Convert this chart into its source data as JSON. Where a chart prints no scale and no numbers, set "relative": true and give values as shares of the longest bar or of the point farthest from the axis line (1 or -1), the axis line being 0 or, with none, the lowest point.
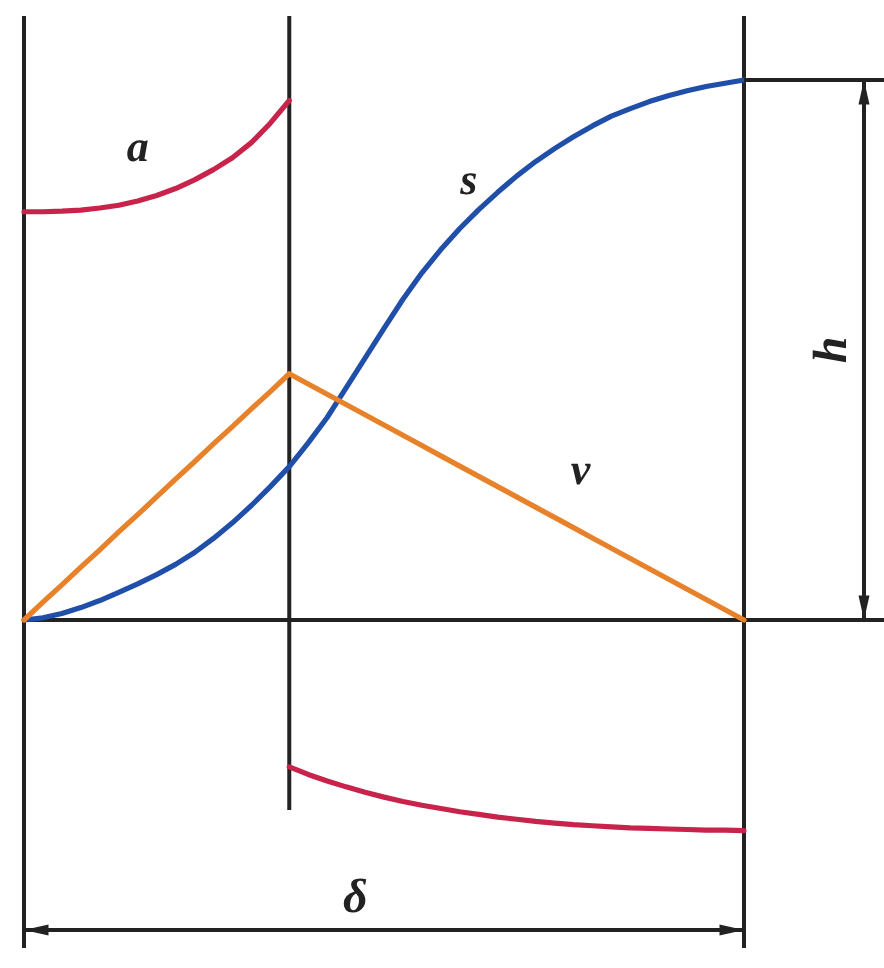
{
  "chart_data": {
    "type": "line",
    "relative": true,
    "categories": [
      null,
      null,
      null,
      null,
      null,
      null,
      null,
      null,
      null,
      null,
      null,
      null,
      null,
      null,
      null,
      null,
      null,
      null,
      null,
      null,
      null,
      null,
      null,
      null,
      null,
      null,
      null,
      null,
      null,
      null,
      null,
      null,
      null,
      null,
      null,
      null,
      null,
      null,
      null
    ],
    "series": [
      {
        "name": "a",
        "color": "#c8234b",
        "values": [
          0.756,
          0.756,
          0.757,
          0.759,
          0.763,
          0.768,
          0.776,
          0.786,
          0.799,
          0.815,
          0.834,
          0.856,
          0.884,
          0.92,
          0.962,
          null,
          null,
          null,
          null,
          null,
          null,
          null,
          null,
          null,
          null,
          null,
          null,
          null,
          null,
          null,
          null,
          null,
          null,
          null,
          null,
          null,
          null,
          null,
          null
        ]
      },
      {
        "color": "#c8234b",
        "values": [
          null,
          null,
          null,
          null,
          null,
          null,
          null,
          null,
          null,
          null,
          null,
          null,
          null,
          null,
          -0.272,
          -0.286,
          -0.298,
          -0.309,
          -0.319,
          -0.328,
          -0.336,
          -0.343,
          -0.349,
          -0.355,
          -0.36,
          -0.365,
          -0.369,
          -0.373,
          -0.376,
          -0.379,
          -0.381,
          -0.383,
          -0.385,
          -0.386,
          -0.387,
          -0.388,
          -0.389,
          -0.389,
          -0.39
        ]
      },
      {
        "name": "s",
        "color": "#1f4fa8",
        "values": [
          0,
          0.004,
          0.012,
          0.023,
          0.036,
          0.051,
          0.067,
          0.084,
          0.103,
          0.125,
          0.151,
          0.18,
          0.212,
          0.247,
          0.284,
          0.328,
          0.375,
          0.43,
          0.485,
          0.54,
          0.594,
          0.643,
          0.686,
          0.725,
          0.76,
          0.792,
          0.822,
          0.849,
          0.873,
          0.895,
          0.915,
          0.933,
          0.947,
          0.96,
          0.971,
          0.98,
          0.988,
          0.994,
          1
        ]
      },
      {
        "name": "v",
        "color": "#e8822a",
        "values": [
          0,
          0.033,
          0.065,
          0.098,
          0.13,
          0.163,
          0.195,
          0.228,
          0.261,
          0.293,
          0.326,
          0.358,
          0.391,
          0.423,
          0.456,
          0.437,
          0.418,
          0.399,
          0.38,
          0.361,
          0.342,
          0.323,
          0.304,
          0.285,
          0.266,
          0.247,
          0.228,
          0.209,
          0.19,
          0.171,
          0.152,
          0.133,
          0.114,
          0.095,
          0.076,
          0.057,
          0.038,
          0.019,
          0
        ]
      }
    ],
    "annotations": [
      "h",
      "δ"
    ],
    "grid": "x",
    "line_style": "solid"
  }
}
